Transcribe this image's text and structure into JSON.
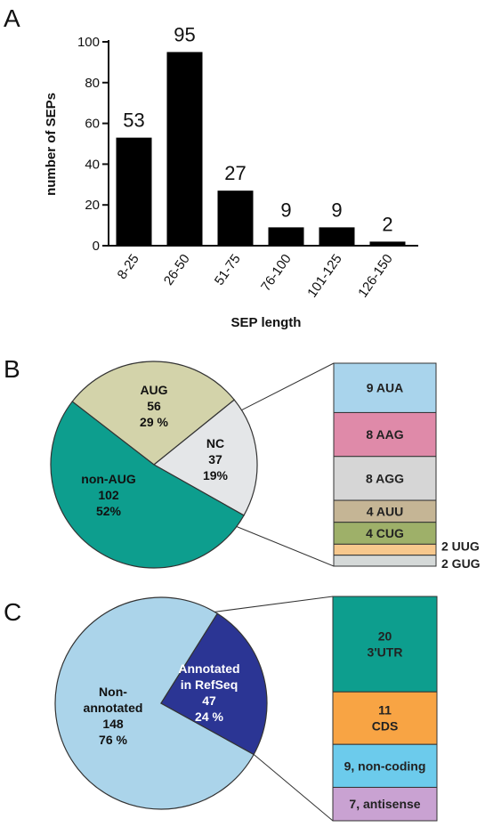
{
  "panels": [
    "A",
    "B",
    "C"
  ],
  "chart_data": [
    {
      "type": "bar",
      "panel": "A",
      "categories": [
        "8-25",
        "26-50",
        "51-75",
        "76-100",
        "101-125",
        "126-150"
      ],
      "values": [
        53,
        95,
        27,
        9,
        9,
        2
      ],
      "data_labels": [
        "53",
        "95",
        "27",
        "9",
        "9",
        "2"
      ],
      "xlabel": "SEP length",
      "ylabel": "number of SEPs",
      "ylim": [
        0,
        100
      ],
      "yticks": [
        "0",
        "20",
        "40",
        "60",
        "80",
        "100"
      ],
      "bar_color": "#000000",
      "grid": false
    },
    {
      "type": "pie",
      "panel": "B",
      "slices": [
        {
          "lines": [
            "AUG",
            "56",
            "29 %"
          ],
          "value": 56,
          "color": "#d3d3aa"
        },
        {
          "lines": [
            "NC",
            "37",
            "19%"
          ],
          "value": 37,
          "color": "#e4e6e8"
        },
        {
          "lines": [
            "non-AUG",
            "102",
            "52%"
          ],
          "value": 102,
          "color": "#0d9e8e"
        }
      ],
      "breakdown": [
        {
          "label": "9 AUA",
          "value": 9,
          "color": "#a9d4ec"
        },
        {
          "label": "8 AAG",
          "value": 8,
          "color": "#df8aa9"
        },
        {
          "label": "8 AGG",
          "value": 8,
          "color": "#d6d6d6"
        },
        {
          "label": "4 AUU",
          "value": 4,
          "color": "#c5b595"
        },
        {
          "label": "4 CUG",
          "value": 4,
          "color": "#9eb069"
        },
        {
          "label": "2 UUG",
          "value": 2,
          "color": "#f7c88d"
        },
        {
          "label": "2 GUG",
          "value": 2,
          "color": "#d5d9d8"
        }
      ]
    },
    {
      "type": "pie",
      "panel": "C",
      "slices": [
        {
          "lines": [
            "Non-",
            "annotated",
            "148",
            "76 %"
          ],
          "value": 148,
          "color": "#abd4ea"
        },
        {
          "lines": [
            "Annotated",
            "in RefSeq",
            "47",
            "24 %"
          ],
          "value": 47,
          "color": "#2b3594"
        }
      ],
      "breakdown": [
        {
          "lines": [
            "20",
            "3'UTR"
          ],
          "value": 20,
          "color": "#0d9e8e"
        },
        {
          "lines": [
            "11",
            "CDS"
          ],
          "value": 11,
          "color": "#f8a444"
        },
        {
          "lines": [
            "9, non-coding"
          ],
          "value": 9,
          "color": "#6ccbec"
        },
        {
          "lines": [
            "7, antisense"
          ],
          "value": 7,
          "color": "#c9a2d2"
        }
      ]
    }
  ]
}
